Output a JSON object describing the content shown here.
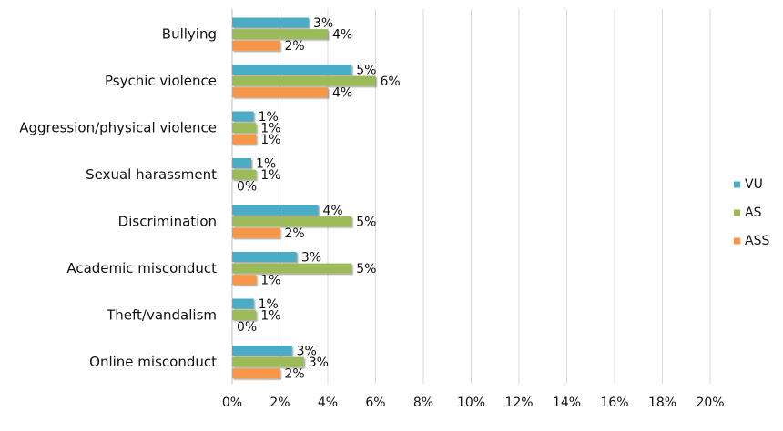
{
  "chart_data": {
    "type": "bar",
    "orientation": "horizontal",
    "categories": [
      "Bullying",
      "Psychic violence",
      "Aggression/physical violence",
      "Sexual harassment",
      "Discrimination",
      "Academic misconduct",
      "Theft/vandalism",
      "Online misconduct"
    ],
    "series": [
      {
        "name": "VU",
        "color": "#4BACC6",
        "values": [
          3.2,
          5.0,
          0.9,
          0.8,
          3.6,
          2.7,
          0.9,
          2.5
        ],
        "labels": [
          "3%",
          "5%",
          "1%",
          "1%",
          "4%",
          "3%",
          "1%",
          "3%"
        ]
      },
      {
        "name": "AS",
        "color": "#9BBB59",
        "values": [
          4.0,
          6.0,
          1.0,
          1.0,
          5.0,
          5.0,
          1.0,
          3.0
        ],
        "labels": [
          "4%",
          "6%",
          "1%",
          "1%",
          "5%",
          "5%",
          "1%",
          "3%"
        ]
      },
      {
        "name": "ASS",
        "color": "#F79646",
        "values": [
          2.0,
          4.0,
          1.0,
          0.0,
          2.0,
          1.0,
          0.0,
          2.0
        ],
        "labels": [
          "2%",
          "4%",
          "1%",
          "0%",
          "2%",
          "1%",
          "0%",
          "2%"
        ]
      }
    ],
    "xlim": [
      0,
      20
    ],
    "xticks": [
      "0%",
      "2%",
      "4%",
      "6%",
      "8%",
      "10%",
      "12%",
      "14%",
      "16%",
      "18%",
      "20%"
    ],
    "grid": true,
    "legend_position": "right",
    "title": "",
    "xlabel": "",
    "ylabel": ""
  }
}
